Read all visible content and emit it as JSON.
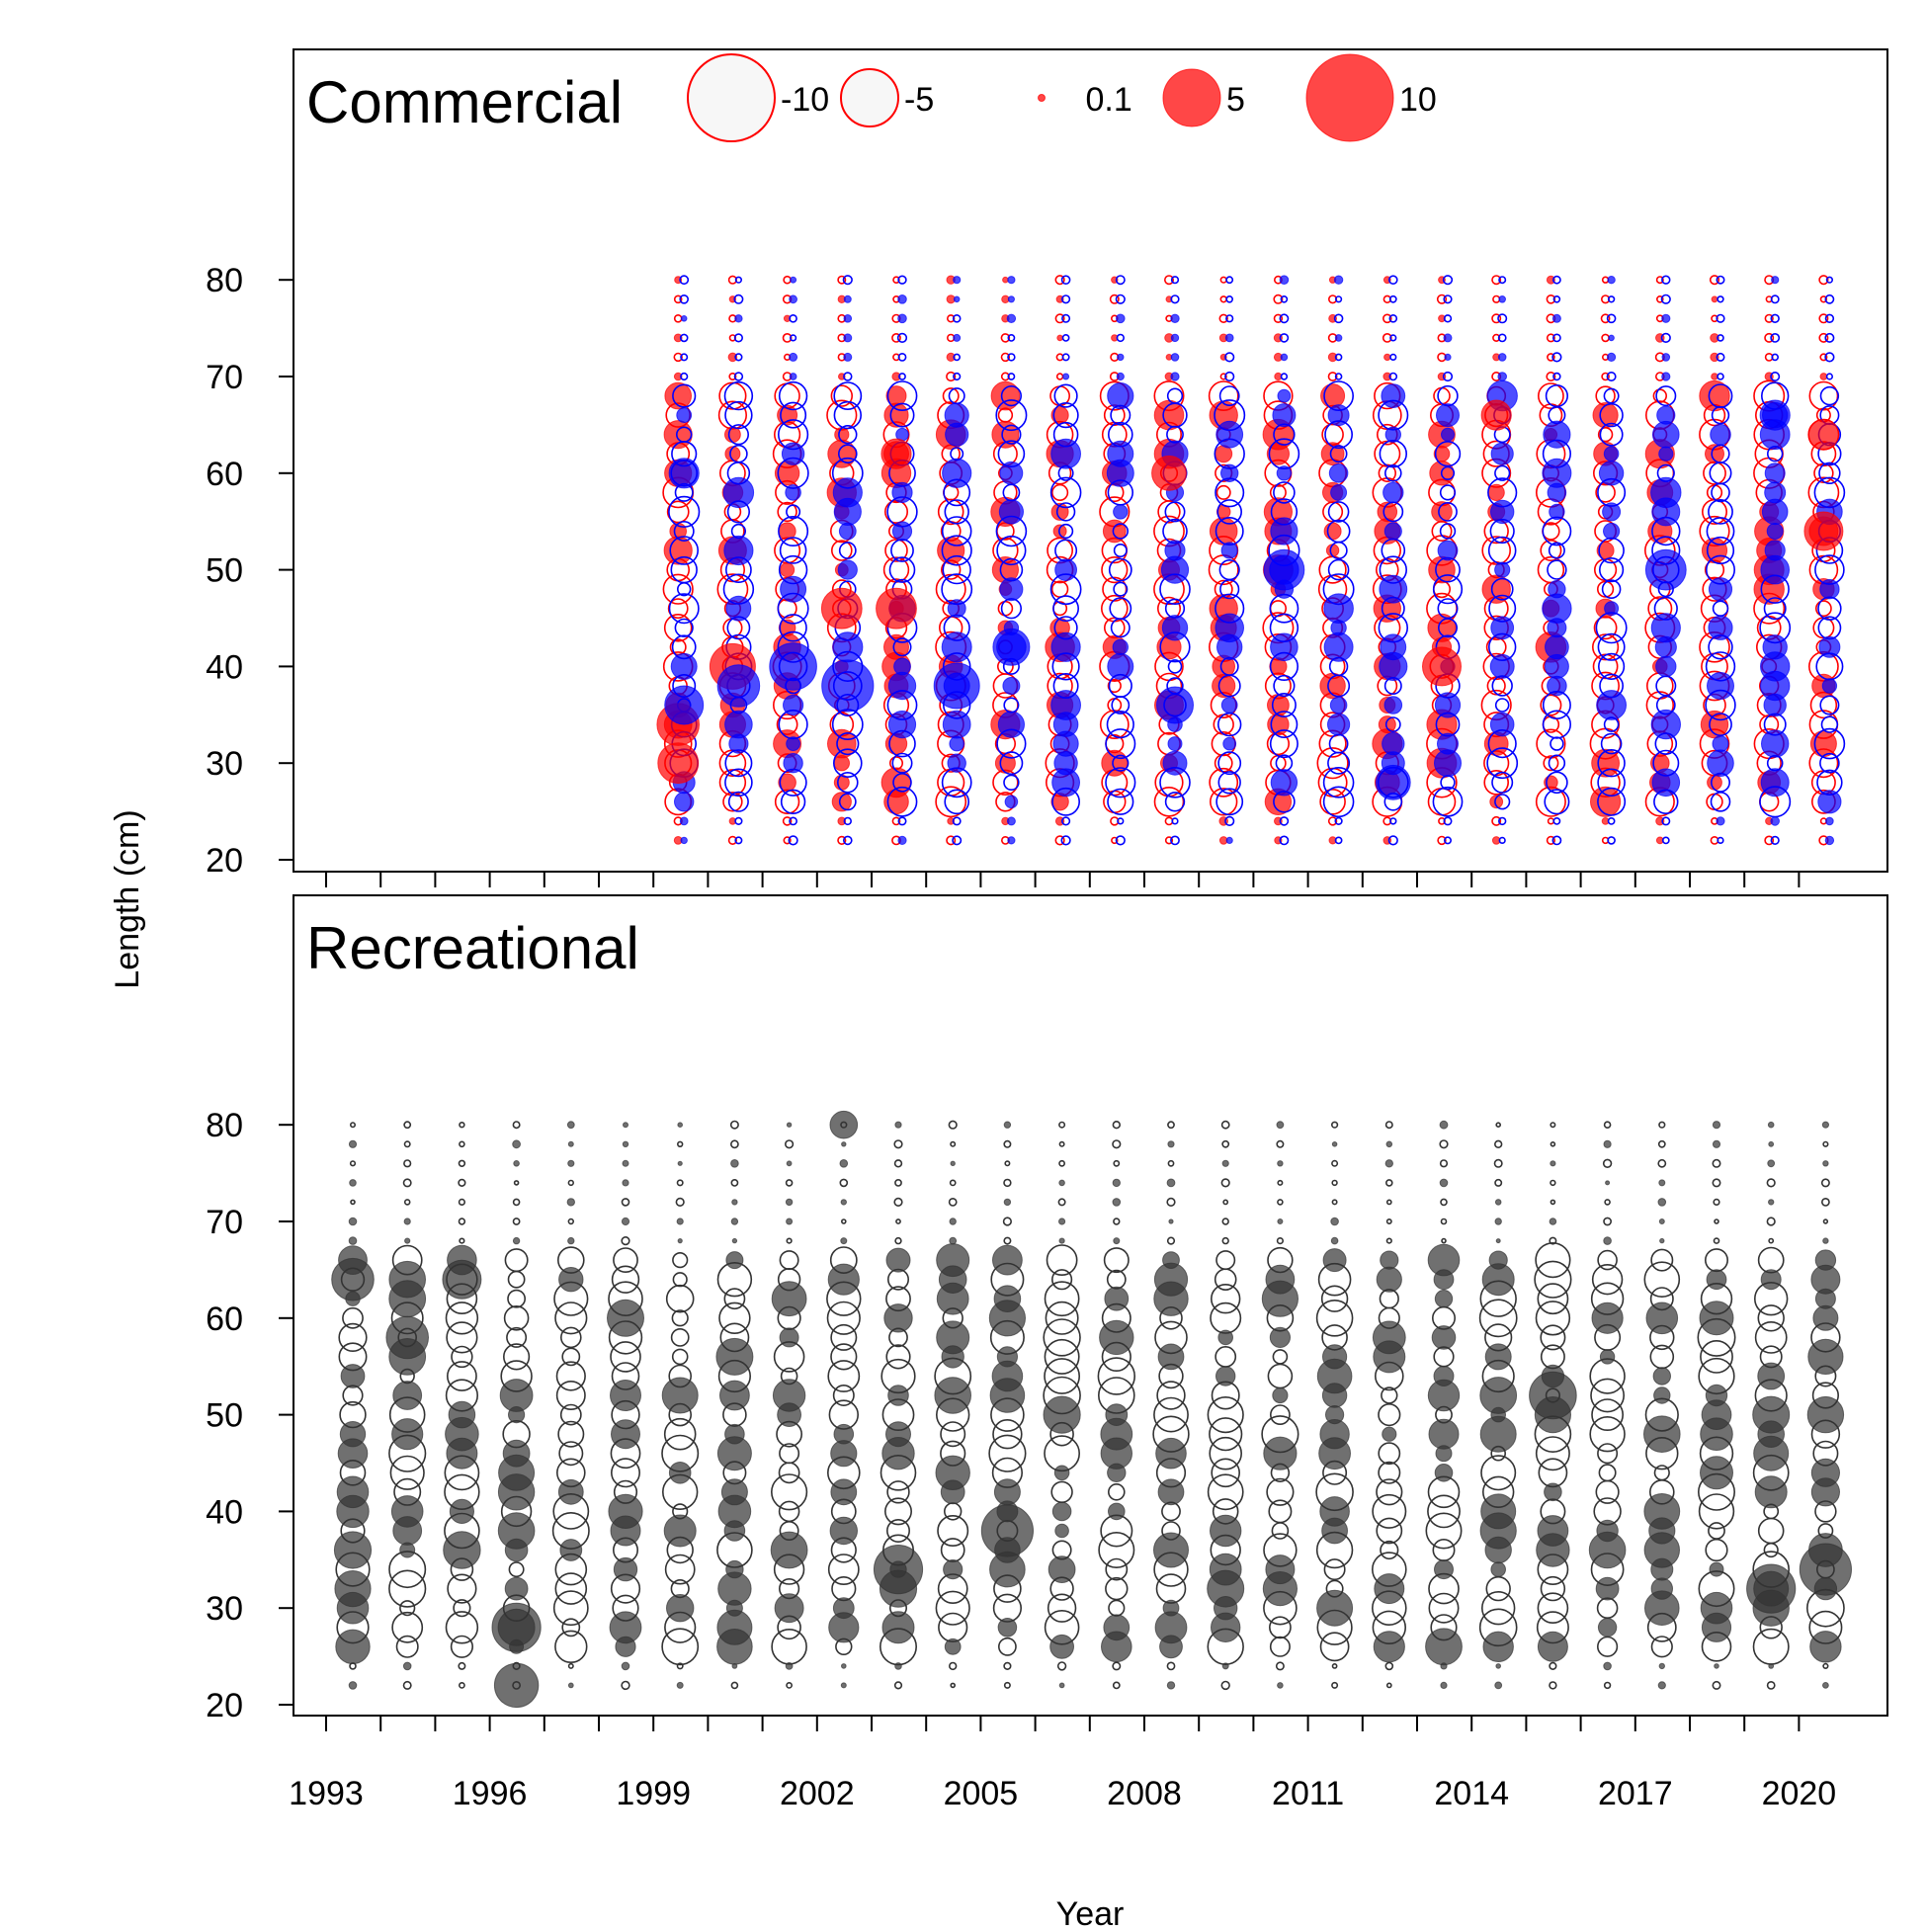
{
  "chart_data": {
    "type": "scatter",
    "subtype": "bubble (Pearson residuals by year and length)",
    "xlabel": "Year",
    "ylabel": "Length (cm)",
    "x_tick_labels": [
      "1993",
      "1996",
      "1999",
      "2002",
      "2005",
      "2008",
      "2011",
      "2014",
      "2017",
      "2020"
    ],
    "x_ticks_every_year": [
      1993,
      2021
    ],
    "y_tick_labels": [
      "20",
      "30",
      "40",
      "50",
      "60",
      "70",
      "80"
    ],
    "length_bins": [
      22,
      80
    ],
    "legend": {
      "entries": [
        {
          "label": "-10",
          "value": -10
        },
        {
          "label": "-5",
          "value": -5
        },
        {
          "label": "0.1",
          "value": 0.1
        },
        {
          "label": "5",
          "value": 5
        },
        {
          "label": "10",
          "value": 10
        }
      ],
      "negative": "open circle",
      "positive": "filled circle"
    },
    "panels": [
      {
        "title": "Commercial",
        "xlim": [
          1992.5,
          2021.7
        ],
        "ylim": [
          20,
          80
        ],
        "colors": {
          "sex_1": "#ff0000",
          "sex_2": "#0000ff"
        },
        "years": [
          1999,
          2000,
          2001,
          2002,
          2003,
          2004,
          2005,
          2006,
          2007,
          2008,
          2009,
          2010,
          2011,
          2012,
          2013,
          2014,
          2015,
          2016,
          2017,
          2018,
          2019,
          2020
        ],
        "notable_positive": [
          {
            "year": 1999,
            "len": 30,
            "r": 5.5,
            "sex": 1
          },
          {
            "year": 1999,
            "len": 34,
            "r": 6,
            "sex": 1
          },
          {
            "year": 1999,
            "len": 36,
            "r": 5,
            "sex": 2
          },
          {
            "year": 1999,
            "len": 60,
            "r": 3,
            "sex": 2
          },
          {
            "year": 2000,
            "len": 40,
            "r": 7,
            "sex": 1
          },
          {
            "year": 2000,
            "len": 38,
            "r": 6,
            "sex": 2
          },
          {
            "year": 2001,
            "len": 40,
            "r": 7.5,
            "sex": 2
          },
          {
            "year": 2002,
            "len": 38,
            "r": 9,
            "sex": 2
          },
          {
            "year": 2002,
            "len": 46,
            "r": 5.5,
            "sex": 1
          },
          {
            "year": 2003,
            "len": 46,
            "r": 5.5,
            "sex": 1
          },
          {
            "year": 2003,
            "len": 62,
            "r": 3,
            "sex": 1
          },
          {
            "year": 2004,
            "len": 38,
            "r": 7,
            "sex": 2
          },
          {
            "year": 2005,
            "len": 42,
            "r": 4.5,
            "sex": 2
          },
          {
            "year": 2008,
            "len": 60,
            "r": 4,
            "sex": 1
          },
          {
            "year": 2008,
            "len": 36,
            "r": 4.5,
            "sex": 2
          },
          {
            "year": 2010,
            "len": 50,
            "r": 5.5,
            "sex": 2
          },
          {
            "year": 2012,
            "len": 28,
            "r": 4,
            "sex": 2
          },
          {
            "year": 2013,
            "len": 40,
            "r": 5,
            "sex": 1
          },
          {
            "year": 2014,
            "len": 66,
            "r": 3,
            "sex": 1
          },
          {
            "year": 2017,
            "len": 50,
            "r": 5.5,
            "sex": 2
          },
          {
            "year": 2019,
            "len": 66,
            "r": 3,
            "sex": 2
          },
          {
            "year": 2020,
            "len": 54,
            "r": 5,
            "sex": 1
          },
          {
            "year": 2020,
            "len": 64,
            "r": 3,
            "sex": 1
          }
        ]
      },
      {
        "title": "Recreational",
        "xlim": [
          1992.5,
          2021.7
        ],
        "ylim": [
          20,
          80
        ],
        "colors": {
          "combined": "#333333"
        },
        "years": [
          1993,
          1994,
          1995,
          1996,
          1997,
          1998,
          1999,
          2000,
          2001,
          2002,
          2003,
          2004,
          2005,
          2006,
          2007,
          2008,
          2009,
          2010,
          2011,
          2012,
          2013,
          2014,
          2015,
          2016,
          2017,
          2018,
          2019,
          2020
        ],
        "notable_positive": [
          {
            "year": 1993,
            "len": 64,
            "r": 6
          },
          {
            "year": 1994,
            "len": 58,
            "r": 6
          },
          {
            "year": 1995,
            "len": 64,
            "r": 5
          },
          {
            "year": 1996,
            "len": 28,
            "r": 8
          },
          {
            "year": 1996,
            "len": 22,
            "r": 6.5
          },
          {
            "year": 2002,
            "len": 80,
            "r": 2.5
          },
          {
            "year": 2003,
            "len": 34,
            "r": 8
          },
          {
            "year": 2005,
            "len": 38,
            "r": 9
          },
          {
            "year": 2015,
            "len": 52,
            "r": 7.5
          },
          {
            "year": 2019,
            "len": 32,
            "r": 8
          },
          {
            "year": 2020,
            "len": 34,
            "r": 9
          }
        ]
      }
    ]
  }
}
